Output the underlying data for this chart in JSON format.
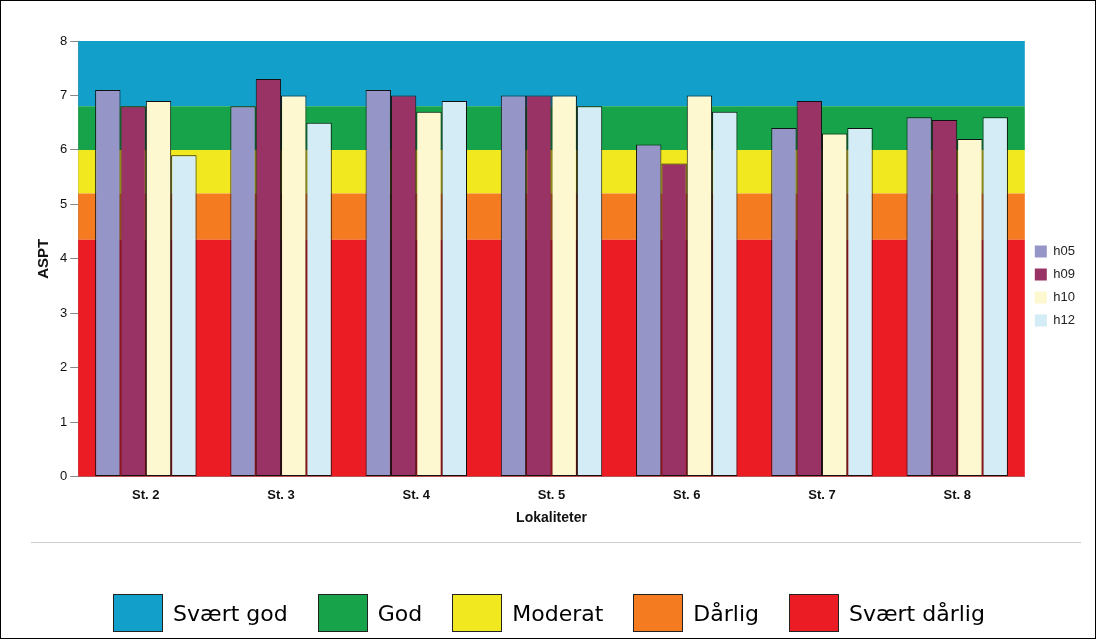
{
  "chart_data": {
    "type": "bar",
    "xlabel": "Lokaliteter",
    "ylabel": "ASPT",
    "categories": [
      "St. 2",
      "St. 3",
      "St. 4",
      "St. 5",
      "St. 6",
      "St. 7",
      "St. 8"
    ],
    "series": [
      {
        "name": "h05",
        "color": "#9595c8",
        "values": [
          7.1,
          6.8,
          7.1,
          7.0,
          6.1,
          6.4,
          6.6
        ]
      },
      {
        "name": "h09",
        "color": "#993366",
        "values": [
          6.8,
          7.3,
          7.0,
          7.0,
          5.75,
          6.9,
          6.55
        ]
      },
      {
        "name": "h10",
        "color": "#fdf8d0",
        "values": [
          6.9,
          7.0,
          6.7,
          7.0,
          7.0,
          6.3,
          6.2
        ]
      },
      {
        "name": "h12",
        "color": "#d3ecf5",
        "values": [
          5.9,
          6.5,
          6.9,
          6.8,
          6.7,
          6.4,
          6.6
        ]
      }
    ],
    "ylim": [
      0,
      8
    ],
    "yticks": [
      0,
      1,
      2,
      3,
      4,
      5,
      6,
      7,
      8
    ],
    "grid": false,
    "legend": "right",
    "bands": [
      {
        "axis": "y",
        "from": 6.8,
        "to": 8,
        "label": "Svært god",
        "color": "#129fc9"
      },
      {
        "axis": "y",
        "from": 6.0,
        "to": 6.8,
        "label": "God",
        "color": "#16a34a"
      },
      {
        "axis": "y",
        "from": 5.2,
        "to": 6.0,
        "label": "Moderat",
        "color": "#f1e81f"
      },
      {
        "axis": "y",
        "from": 4.35,
        "to": 5.2,
        "label": "Dårlig",
        "color": "#f47b20"
      },
      {
        "axis": "y",
        "from": 0,
        "to": 4.35,
        "label": "Svært dårlig",
        "color": "#ec1c24"
      }
    ]
  }
}
